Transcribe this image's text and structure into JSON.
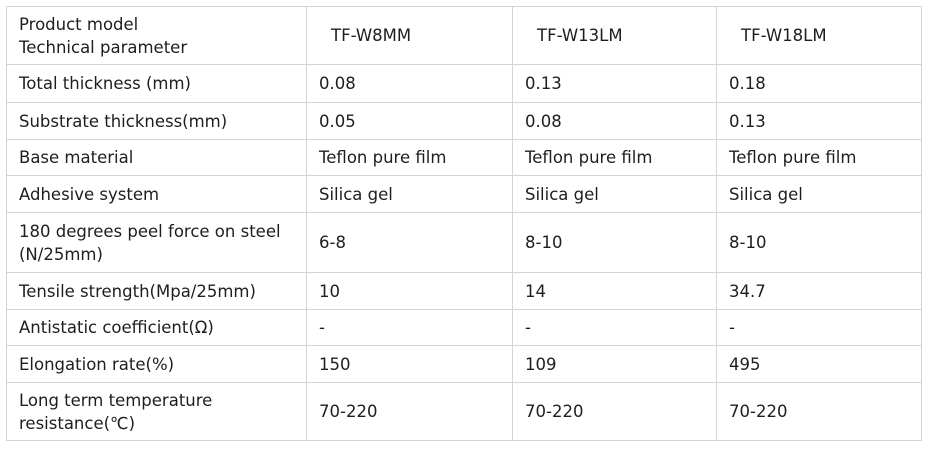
{
  "table": {
    "header": [
      "Product model\nTechnical parameter",
      "TF-W8MM",
      "TF-W13LM",
      "TF-W18LM"
    ],
    "rows": [
      [
        "Total thickness (mm)",
        "0.08",
        "0.13",
        "0.18"
      ],
      [
        "Substrate thickness(mm)",
        "0.05",
        "0.08",
        "0.13"
      ],
      [
        "Base material",
        "Teflon pure film",
        "Teflon pure film",
        "Teflon pure film"
      ],
      [
        "Adhesive system",
        "Silica gel",
        "Silica gel",
        "Silica gel"
      ],
      [
        "180 degrees peel force on steel\n(N/25mm)",
        "6-8",
        "8-10",
        "8-10"
      ],
      [
        "Tensile strength(Mpa/25mm)",
        "10",
        "14",
        "34.7"
      ],
      [
        "Antistatic coefficient(Ω)",
        "-",
        "-",
        "-"
      ],
      [
        "Elongation rate(%)",
        "150",
        "109",
        "495"
      ],
      [
        "Long term temperature\nresistance(℃)",
        "70-220",
        "70-220",
        "70-220"
      ]
    ]
  }
}
